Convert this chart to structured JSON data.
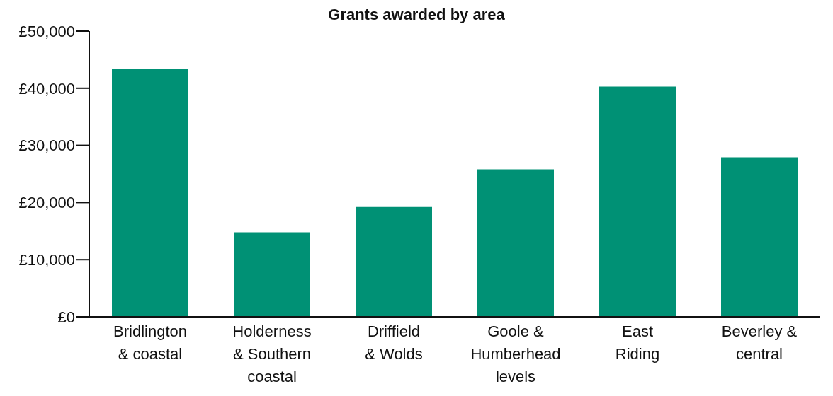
{
  "chart_data": {
    "type": "bar",
    "title": "Grants awarded by area",
    "categories": [
      "Bridlington & coastal",
      "Holderness & Southern coastal",
      "Driffield & Wolds",
      "Goole & Humberhead levels",
      "East Riding",
      "Beverley & central"
    ],
    "values": [
      43400,
      14800,
      19200,
      25800,
      40300,
      27900
    ],
    "color": "#009175",
    "ylim": [
      0,
      50000
    ],
    "yticks": [
      {
        "value": 0,
        "label": "£0"
      },
      {
        "value": 10000,
        "label": "£10,000"
      },
      {
        "value": 20000,
        "label": "£20,000"
      },
      {
        "value": 30000,
        "label": "£30,000"
      },
      {
        "value": 40000,
        "label": "£40,000"
      },
      {
        "value": 50000,
        "label": "£50,000"
      }
    ],
    "grid": false
  }
}
